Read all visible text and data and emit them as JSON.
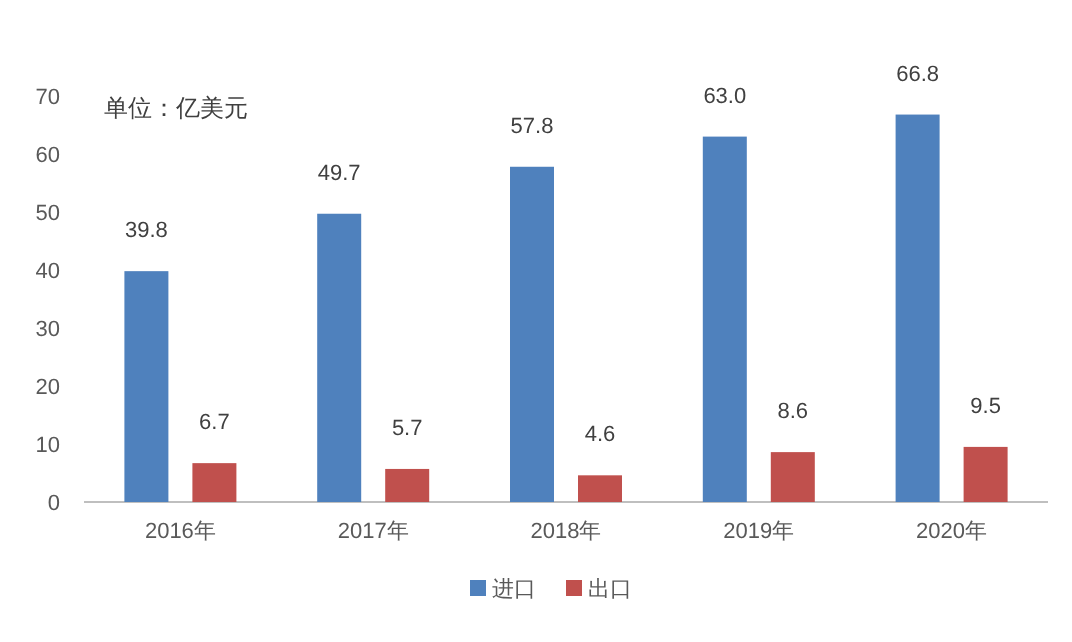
{
  "chart_data": {
    "type": "bar",
    "categories": [
      "2016年",
      "2017年",
      "2018年",
      "2019年",
      "2020年"
    ],
    "series": [
      {
        "name": "进口",
        "color": "#4f81bd",
        "values": [
          39.8,
          49.7,
          57.8,
          63.0,
          66.8
        ],
        "value_labels": [
          "39.8",
          "49.7",
          "57.8",
          "63.0",
          "66.8"
        ]
      },
      {
        "name": "出口",
        "color": "#c0504d",
        "values": [
          6.7,
          5.7,
          4.6,
          8.6,
          9.5
        ],
        "value_labels": [
          "6.7",
          "5.7",
          "4.6",
          "8.6",
          "9.5"
        ]
      }
    ],
    "ylim": [
      0,
      70
    ],
    "yticks": [
      0,
      10,
      20,
      30,
      40,
      50,
      60,
      70
    ],
    "legend": "bottom",
    "annotations": [
      "单位：亿美元"
    ]
  }
}
